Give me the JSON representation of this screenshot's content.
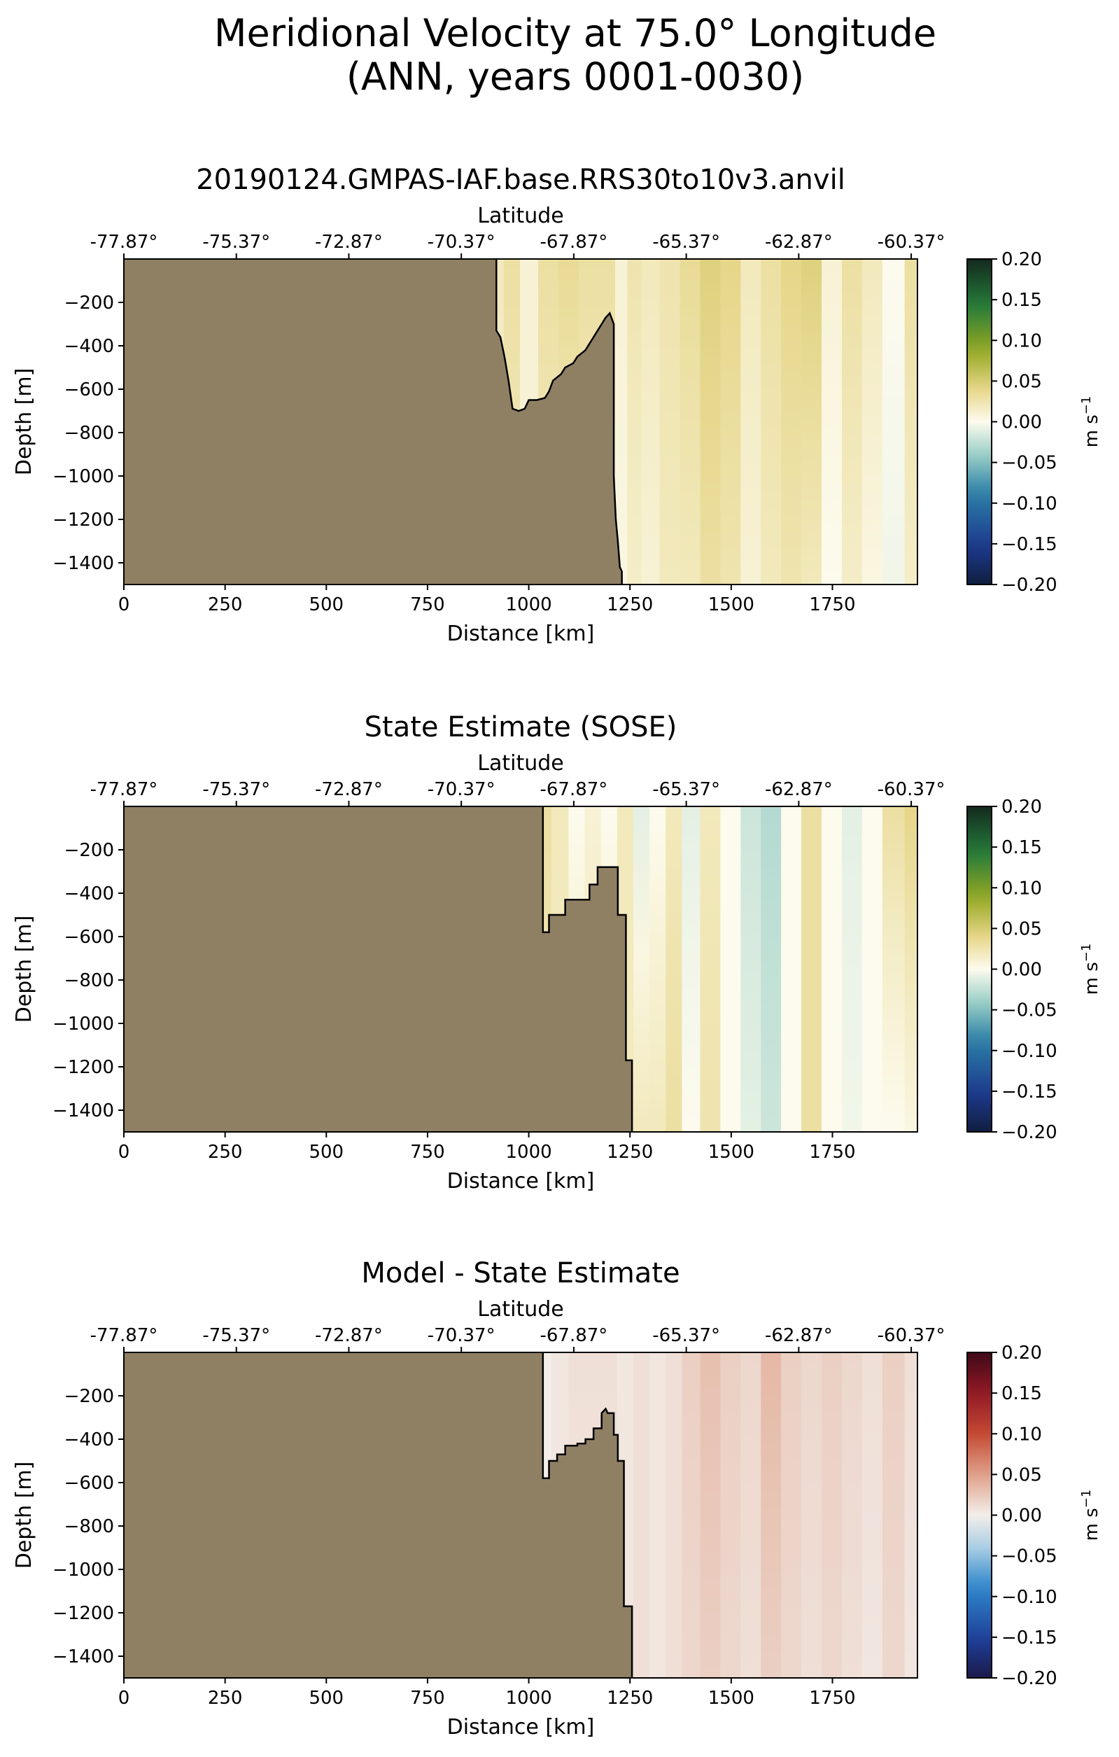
{
  "figure": {
    "title_line1": "Meridional Velocity at 75.0° Longitude",
    "title_line2": "(ANN, years 0001-0030)"
  },
  "chart_data": [
    {
      "type": "heatmap",
      "title": "20190124.GMPAS-IAF.base.RRS30to10v3.anvil",
      "xlabel": "Distance [km]",
      "ylabel": "Depth [m]",
      "x2label": "Latitude",
      "colorbar_label": "m s",
      "colorbar_exp": "−1",
      "colormap": "green-yellow-blue",
      "xlim": [
        0,
        1960
      ],
      "ylim": [
        -1500,
        0
      ],
      "clim": [
        -0.2,
        0.2
      ],
      "xticks": [
        0,
        250,
        500,
        750,
        1000,
        1250,
        1500,
        1750
      ],
      "xticklabels": [
        "0",
        "250",
        "500",
        "750",
        "1000",
        "1250",
        "1500",
        "1750"
      ],
      "yticks": [
        -200,
        -400,
        -600,
        -800,
        -1000,
        -1200,
        -1400
      ],
      "yticklabels": [
        "−200",
        "−400",
        "−600",
        "−800",
        "−1000",
        "−1200",
        "−1400"
      ],
      "x2ticks": [
        0,
        277.8,
        555.6,
        833.4,
        1111.2,
        1389,
        1666.8,
        1944.6
      ],
      "x2ticklabels": [
        "-77.87°",
        "-75.37°",
        "-72.87°",
        "-70.37°",
        "-67.87°",
        "-65.37°",
        "-62.87°",
        "-60.37°"
      ],
      "cticks": [
        0.2,
        0.15,
        0.1,
        0.05,
        0.0,
        -0.05,
        -0.1,
        -0.15,
        -0.2
      ],
      "cticklabels": [
        "0.20",
        "0.15",
        "0.10",
        "0.05",
        "0.00",
        "−0.05",
        "−0.10",
        "−0.15",
        "−0.20"
      ],
      "land_color": "#8f8064",
      "bathymetry": {
        "distance_km": [
          920,
          920,
          930,
          940,
          950,
          960,
          975,
          990,
          1000,
          1020,
          1040,
          1050,
          1060,
          1080,
          1090,
          1110,
          1120,
          1140,
          1150,
          1160,
          1170,
          1180,
          1190,
          1200,
          1210,
          1210,
          1215,
          1220,
          1225,
          1230,
          1230
        ],
        "depth_m": [
          0,
          -330,
          -360,
          -450,
          -560,
          -690,
          -700,
          -690,
          -650,
          -650,
          -640,
          -610,
          -560,
          -530,
          -500,
          -480,
          -450,
          -420,
          -390,
          -360,
          -330,
          -300,
          -270,
          -250,
          -300,
          -1000,
          -1200,
          -1300,
          -1420,
          -1440,
          -1500
        ]
      },
      "field": {
        "x_km": [
          920,
          960,
          1000,
          1050,
          1100,
          1150,
          1200,
          1230,
          1260,
          1300,
          1350,
          1400,
          1450,
          1500,
          1550,
          1600,
          1650,
          1700,
          1750,
          1800,
          1850,
          1900,
          1960
        ],
        "surface_v": [
          0.02,
          0.03,
          0.01,
          0.03,
          0.035,
          0.03,
          0.03,
          0.01,
          0.025,
          0.02,
          0.025,
          0.035,
          0.045,
          0.04,
          0.02,
          0.03,
          0.04,
          0.045,
          0.01,
          0.03,
          0.02,
          0.0,
          0.03
        ],
        "deep_v": [
          0.01,
          0.02,
          0.01,
          0.02,
          0.02,
          0.02,
          0.02,
          0.005,
          0.015,
          0.01,
          0.02,
          0.02,
          0.03,
          0.025,
          0.01,
          0.02,
          0.025,
          0.02,
          0.0,
          0.015,
          0.005,
          -0.005,
          0.015
        ]
      }
    },
    {
      "type": "heatmap",
      "title": "State Estimate (SOSE)",
      "xlabel": "Distance [km]",
      "ylabel": "Depth [m]",
      "x2label": "Latitude",
      "colorbar_label": "m s",
      "colorbar_exp": "−1",
      "colormap": "green-yellow-blue",
      "xlim": [
        0,
        1960
      ],
      "ylim": [
        -1500,
        0
      ],
      "clim": [
        -0.2,
        0.2
      ],
      "xticks": [
        0,
        250,
        500,
        750,
        1000,
        1250,
        1500,
        1750
      ],
      "xticklabels": [
        "0",
        "250",
        "500",
        "750",
        "1000",
        "1250",
        "1500",
        "1750"
      ],
      "yticks": [
        -200,
        -400,
        -600,
        -800,
        -1000,
        -1200,
        -1400
      ],
      "yticklabels": [
        "−200",
        "−400",
        "−600",
        "−800",
        "−1000",
        "−1200",
        "−1400"
      ],
      "x2ticks": [
        0,
        277.8,
        555.6,
        833.4,
        1111.2,
        1389,
        1666.8,
        1944.6
      ],
      "x2ticklabels": [
        "-77.87°",
        "-75.37°",
        "-72.87°",
        "-70.37°",
        "-67.87°",
        "-65.37°",
        "-62.87°",
        "-60.37°"
      ],
      "cticks": [
        0.2,
        0.15,
        0.1,
        0.05,
        0.0,
        -0.05,
        -0.1,
        -0.15,
        -0.2
      ],
      "cticklabels": [
        "0.20",
        "0.15",
        "0.10",
        "0.05",
        "0.00",
        "−0.05",
        "−0.10",
        "−0.15",
        "−0.20"
      ],
      "land_color": "#8f8064",
      "bathymetry": {
        "distance_km": [
          1035,
          1035,
          1050,
          1050,
          1090,
          1090,
          1150,
          1150,
          1170,
          1170,
          1220,
          1220,
          1240,
          1240,
          1255,
          1255
        ],
        "depth_m": [
          0,
          -580,
          -580,
          -500,
          -500,
          -430,
          -430,
          -360,
          -360,
          -280,
          -280,
          -500,
          -500,
          -1170,
          -1170,
          -1500
        ]
      },
      "field": {
        "x_km": [
          1035,
          1080,
          1120,
          1160,
          1200,
          1240,
          1280,
          1320,
          1360,
          1400,
          1450,
          1500,
          1550,
          1600,
          1650,
          1700,
          1750,
          1800,
          1850,
          1900,
          1960
        ],
        "surface_v": [
          0.03,
          0.02,
          0.0,
          0.01,
          0.0,
          0.02,
          -0.01,
          0.0,
          0.02,
          -0.01,
          0.02,
          0.0,
          -0.02,
          -0.03,
          0.0,
          0.03,
          0.0,
          -0.01,
          0.0,
          0.03,
          0.04
        ],
        "deep_v": [
          0.02,
          0.02,
          0.02,
          0.02,
          0.02,
          0.02,
          0.02,
          0.02,
          0.03,
          0.0,
          0.025,
          0.0,
          -0.01,
          -0.02,
          0.0,
          0.03,
          0.0,
          -0.005,
          0.0,
          0.0,
          0.005
        ]
      }
    },
    {
      "type": "heatmap",
      "title": "Model - State Estimate",
      "xlabel": "Distance [km]",
      "ylabel": "Depth [m]",
      "x2label": "Latitude",
      "colorbar_label": "m s",
      "colorbar_exp": "−1",
      "colormap": "red-white-blue",
      "xlim": [
        0,
        1960
      ],
      "ylim": [
        -1500,
        0
      ],
      "clim": [
        -0.2,
        0.2
      ],
      "xticks": [
        0,
        250,
        500,
        750,
        1000,
        1250,
        1500,
        1750
      ],
      "xticklabels": [
        "0",
        "250",
        "500",
        "750",
        "1000",
        "1250",
        "1500",
        "1750"
      ],
      "yticks": [
        -200,
        -400,
        -600,
        -800,
        -1000,
        -1200,
        -1400
      ],
      "yticklabels": [
        "−200",
        "−400",
        "−600",
        "−800",
        "−1000",
        "−1200",
        "−1400"
      ],
      "x2ticks": [
        0,
        277.8,
        555.6,
        833.4,
        1111.2,
        1389,
        1666.8,
        1944.6
      ],
      "x2ticklabels": [
        "-77.87°",
        "-75.37°",
        "-72.87°",
        "-70.37°",
        "-67.87°",
        "-65.37°",
        "-62.87°",
        "-60.37°"
      ],
      "cticks": [
        0.2,
        0.15,
        0.1,
        0.05,
        0.0,
        -0.05,
        -0.1,
        -0.15,
        -0.2
      ],
      "cticklabels": [
        "0.20",
        "0.15",
        "0.10",
        "0.05",
        "0.00",
        "−0.05",
        "−0.10",
        "−0.15",
        "−0.20"
      ],
      "land_color": "#8f8064",
      "bathymetry": {
        "distance_km": [
          1035,
          1035,
          1050,
          1050,
          1070,
          1070,
          1090,
          1090,
          1120,
          1120,
          1140,
          1140,
          1160,
          1160,
          1180,
          1180,
          1190,
          1195,
          1210,
          1210,
          1220,
          1220,
          1235,
          1235,
          1240,
          1240,
          1255,
          1255
        ],
        "depth_m": [
          0,
          -580,
          -580,
          -500,
          -500,
          -470,
          -470,
          -430,
          -430,
          -420,
          -420,
          -400,
          -400,
          -350,
          -350,
          -280,
          -260,
          -280,
          -280,
          -380,
          -380,
          -500,
          -500,
          -1170,
          -1170,
          -1170,
          -1170,
          -1500
        ]
      },
      "field": {
        "x_km": [
          1035,
          1080,
          1120,
          1160,
          1200,
          1240,
          1280,
          1320,
          1360,
          1400,
          1450,
          1500,
          1550,
          1600,
          1650,
          1700,
          1750,
          1800,
          1850,
          1900,
          1960
        ],
        "surface_v": [
          0.0,
          0.005,
          0.01,
          0.01,
          0.01,
          0.005,
          0.01,
          0.005,
          0.01,
          0.02,
          0.03,
          0.02,
          0.015,
          0.035,
          0.02,
          0.015,
          0.02,
          0.015,
          0.01,
          0.02,
          0.01
        ],
        "deep_v": [
          0.0,
          0.005,
          0.005,
          0.005,
          0.005,
          0.005,
          0.01,
          0.005,
          0.01,
          0.015,
          0.02,
          0.015,
          0.01,
          0.02,
          0.015,
          0.01,
          0.015,
          0.01,
          0.005,
          0.015,
          0.005
        ]
      }
    }
  ]
}
